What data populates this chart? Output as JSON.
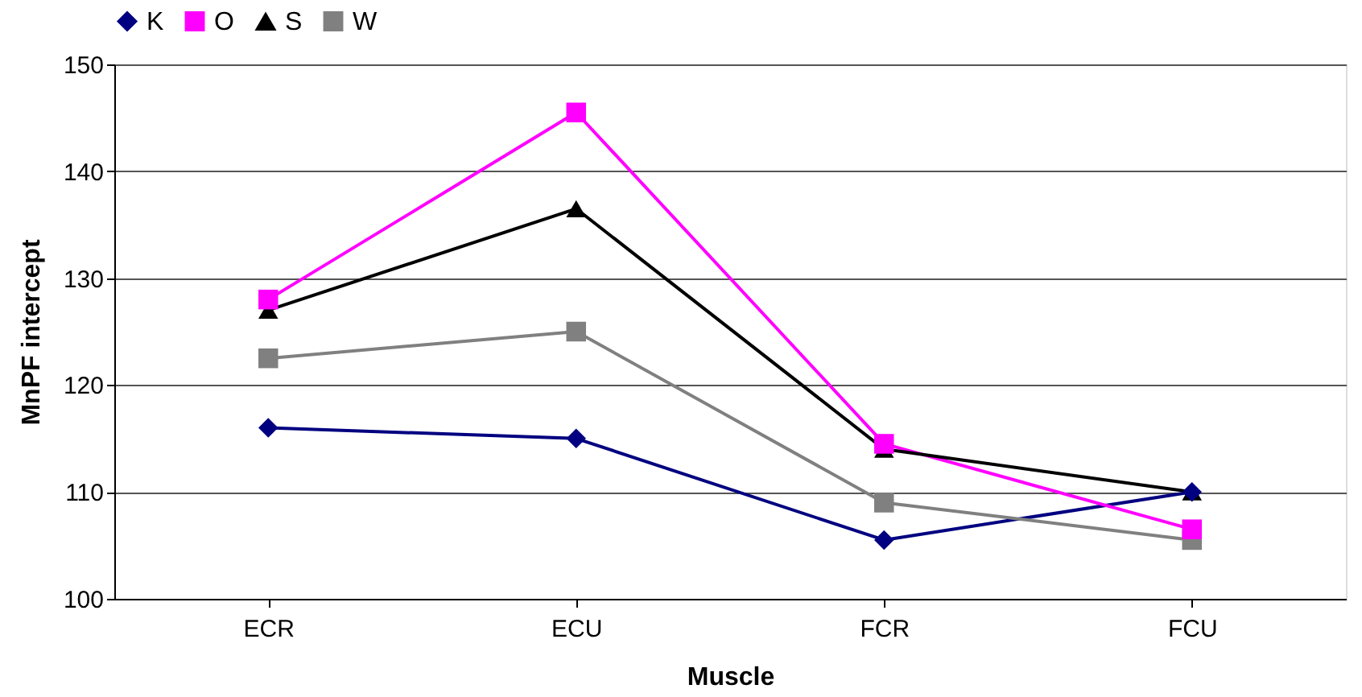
{
  "chart_data": {
    "type": "line",
    "xlabel": "Muscle",
    "ylabel": "MnPF intercept",
    "categories": [
      "ECR",
      "ECU",
      "FCR",
      "FCU"
    ],
    "series": [
      {
        "name": "K",
        "color": "#000080",
        "marker": "diamond",
        "values": [
          116,
          115,
          105.5,
          110
        ]
      },
      {
        "name": "O",
        "color": "#ff00ff",
        "marker": "square",
        "values": [
          128,
          145.5,
          114.5,
          106.5
        ]
      },
      {
        "name": "S",
        "color": "#000000",
        "marker": "triangle",
        "values": [
          127,
          136.5,
          114,
          110
        ]
      },
      {
        "name": "W",
        "color": "#808080",
        "marker": "square",
        "values": [
          122.5,
          125,
          109,
          105.5
        ]
      }
    ],
    "ylim": [
      100,
      150
    ],
    "yticks": [
      100,
      110,
      120,
      130,
      140,
      150
    ],
    "grid": "y",
    "legend": "top",
    "line_style": "solid"
  }
}
